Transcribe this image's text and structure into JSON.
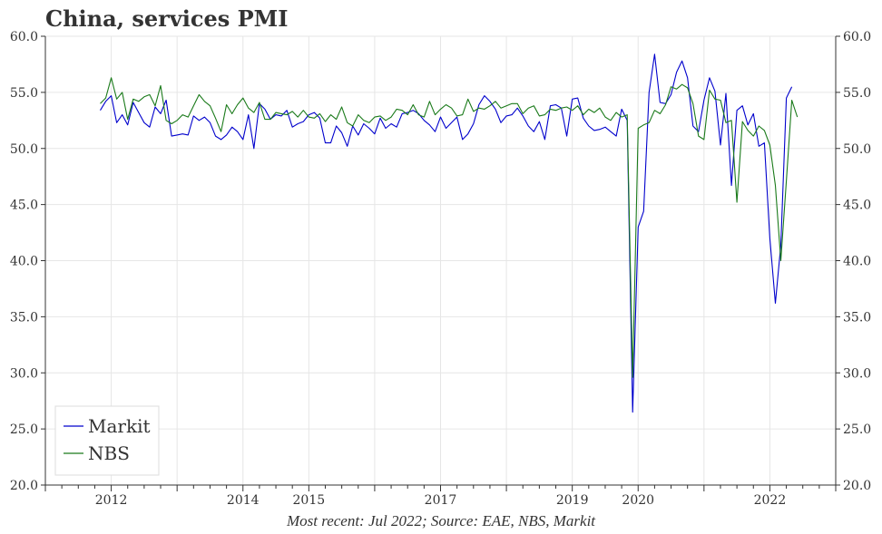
{
  "chart_data": {
    "type": "line",
    "title": "China, services PMI",
    "footer": "Most recent: Jul 2022; Source: EAE, NBS, Markit",
    "ylim": [
      20,
      60
    ],
    "yticks": [
      20,
      25,
      30,
      35,
      40,
      45,
      50,
      55,
      60
    ],
    "ytick_labels": [
      "20.0",
      "25.0",
      "30.0",
      "35.0",
      "40.0",
      "45.0",
      "50.0",
      "55.0",
      "60.0"
    ],
    "xlim": [
      2011.0,
      2023.0
    ],
    "xtick_labels": [
      "2012",
      "2014",
      "2015",
      "2017",
      "2019",
      "2020",
      "2022"
    ],
    "grid": true,
    "legend_position": "bottom-left",
    "colors": {
      "Markit": "#0000cc",
      "NBS": "#1a7a1a"
    },
    "series": [
      {
        "name": "Markit",
        "start": "2011-11",
        "values": [
          53.4,
          54.2,
          54.7,
          52.3,
          53.0,
          52.1,
          54.1,
          53.2,
          52.3,
          51.9,
          53.7,
          53.1,
          54.3,
          51.1,
          51.2,
          51.3,
          51.2,
          52.9,
          52.5,
          52.8,
          52.3,
          51.1,
          50.8,
          51.2,
          51.9,
          51.5,
          50.8,
          53.0,
          50.0,
          54.0,
          53.5,
          52.6,
          53.0,
          52.9,
          53.4,
          51.9,
          52.2,
          52.4,
          53.0,
          53.2,
          52.7,
          50.5,
          50.5,
          52.0,
          51.4,
          50.2,
          52.0,
          51.2,
          52.2,
          51.8,
          51.3,
          52.7,
          51.8,
          52.2,
          51.9,
          53.1,
          53.2,
          53.4,
          53.1,
          52.5,
          52.1,
          51.5,
          52.8,
          51.8,
          52.3,
          52.8,
          50.8,
          51.3,
          52.2,
          53.9,
          54.7,
          54.2,
          53.5,
          52.3,
          52.9,
          53.0,
          53.6,
          52.9,
          52.0,
          51.5,
          52.4,
          50.8,
          53.8,
          53.9,
          53.6,
          51.1,
          54.4,
          54.5,
          52.7,
          52.0,
          51.6,
          51.7,
          51.9,
          51.5,
          51.1,
          53.5,
          52.5,
          26.5,
          43.0,
          44.4,
          55.0,
          58.4,
          54.1,
          54.0,
          54.8,
          56.8,
          57.8,
          56.3,
          52.0,
          51.5,
          54.3,
          56.3,
          55.1,
          50.3,
          54.9,
          46.7,
          53.4,
          53.8,
          52.1,
          53.1,
          50.2,
          50.5,
          42.0,
          36.2,
          41.4,
          54.5,
          55.5
        ]
      },
      {
        "name": "NBS",
        "start": "2011-11",
        "values": [
          54.0,
          54.5,
          56.3,
          54.4,
          55.0,
          52.6,
          54.4,
          54.2,
          54.6,
          54.8,
          53.8,
          55.6,
          52.5,
          52.2,
          52.5,
          53.0,
          52.8,
          53.8,
          54.8,
          54.2,
          53.8,
          52.7,
          51.5,
          53.9,
          53.1,
          53.9,
          54.5,
          53.6,
          53.2,
          54.1,
          52.6,
          52.6,
          53.2,
          53.1,
          53.0,
          53.3,
          52.8,
          53.4,
          52.8,
          52.7,
          53.1,
          52.4,
          53.0,
          52.6,
          53.7,
          52.3,
          52.0,
          53.0,
          52.5,
          52.3,
          52.8,
          52.9,
          52.5,
          52.8,
          53.5,
          53.4,
          53.0,
          53.9,
          53.0,
          52.8,
          54.2,
          53.0,
          53.5,
          53.9,
          53.6,
          52.9,
          53.0,
          54.4,
          53.3,
          53.6,
          53.5,
          53.8,
          54.2,
          53.6,
          53.8,
          54.0,
          54.0,
          53.1,
          53.6,
          53.8,
          52.9,
          53.0,
          53.5,
          53.4,
          53.6,
          53.7,
          53.4,
          53.8,
          53.0,
          53.5,
          53.2,
          53.6,
          52.8,
          52.5,
          53.2,
          52.8,
          53.0,
          29.6,
          51.8,
          52.1,
          52.3,
          53.4,
          53.1,
          53.9,
          55.5,
          55.3,
          55.7,
          55.4,
          54.0,
          51.1,
          50.8,
          55.2,
          54.4,
          54.3,
          52.3,
          52.5,
          45.2,
          52.4,
          51.6,
          51.1,
          52.0,
          51.6,
          50.3,
          46.7,
          40.0,
          47.1,
          54.3,
          52.8
        ]
      }
    ]
  }
}
